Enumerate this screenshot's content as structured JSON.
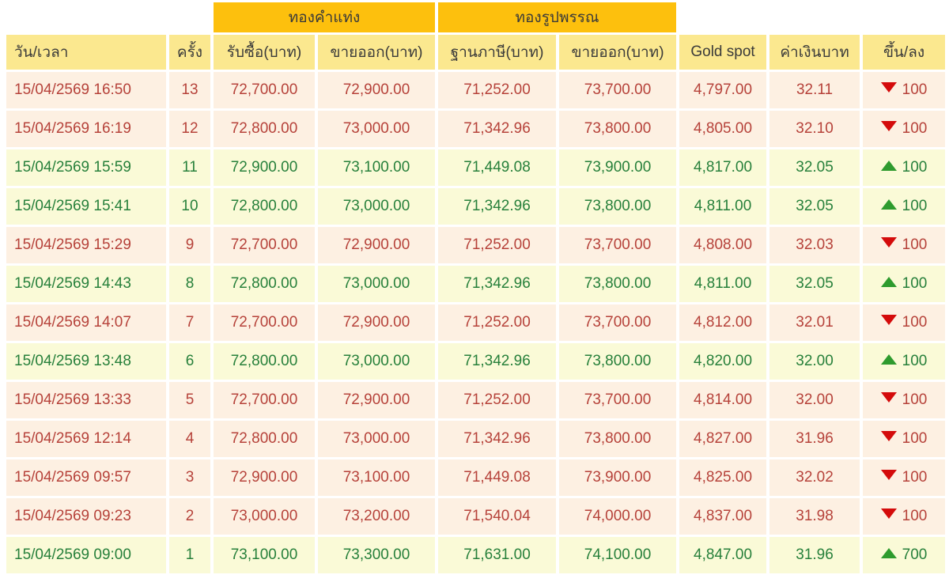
{
  "colors": {
    "accent_orange": "#FDC00D",
    "header_yellow": "#FBE88F",
    "row_down_bg": "#FDF0E2",
    "row_up_bg": "#FAFAD7",
    "down_text": "#B6423A",
    "up_text": "#27803B",
    "down_arrow": "#D40B0B",
    "up_arrow": "#2E9B2E",
    "header_text": "#3A3A3A"
  },
  "table": {
    "group_headers": [
      {
        "label": "ทองคำแท่ง"
      },
      {
        "label": "ทองรูปพรรณ"
      }
    ],
    "columns": [
      "วัน/เวลา",
      "ครั้ง",
      "รับซื้อ(บาท)",
      "ขายออก(บาท)",
      "ฐานภาษี(บาท)",
      "ขายออก(บาท)",
      "Gold spot",
      "ค่าเงินบาท",
      "ขึ้น/ลง"
    ],
    "rows": [
      {
        "datetime": "15/04/2569 16:50",
        "round": "13",
        "bar_buy": "72,700.00",
        "bar_sell": "72,900.00",
        "tax_base": "71,252.00",
        "jewelry_sell": "73,700.00",
        "gold_spot": "4,797.00",
        "baht": "32.11",
        "direction": "down",
        "change": "100"
      },
      {
        "datetime": "15/04/2569 16:19",
        "round": "12",
        "bar_buy": "72,800.00",
        "bar_sell": "73,000.00",
        "tax_base": "71,342.96",
        "jewelry_sell": "73,800.00",
        "gold_spot": "4,805.00",
        "baht": "32.10",
        "direction": "down",
        "change": "100"
      },
      {
        "datetime": "15/04/2569 15:59",
        "round": "11",
        "bar_buy": "72,900.00",
        "bar_sell": "73,100.00",
        "tax_base": "71,449.08",
        "jewelry_sell": "73,900.00",
        "gold_spot": "4,817.00",
        "baht": "32.05",
        "direction": "up",
        "change": "100"
      },
      {
        "datetime": "15/04/2569 15:41",
        "round": "10",
        "bar_buy": "72,800.00",
        "bar_sell": "73,000.00",
        "tax_base": "71,342.96",
        "jewelry_sell": "73,800.00",
        "gold_spot": "4,811.00",
        "baht": "32.05",
        "direction": "up",
        "change": "100"
      },
      {
        "datetime": "15/04/2569 15:29",
        "round": "9",
        "bar_buy": "72,700.00",
        "bar_sell": "72,900.00",
        "tax_base": "71,252.00",
        "jewelry_sell": "73,700.00",
        "gold_spot": "4,808.00",
        "baht": "32.03",
        "direction": "down",
        "change": "100"
      },
      {
        "datetime": "15/04/2569 14:43",
        "round": "8",
        "bar_buy": "72,800.00",
        "bar_sell": "73,000.00",
        "tax_base": "71,342.96",
        "jewelry_sell": "73,800.00",
        "gold_spot": "4,811.00",
        "baht": "32.05",
        "direction": "up",
        "change": "100"
      },
      {
        "datetime": "15/04/2569 14:07",
        "round": "7",
        "bar_buy": "72,700.00",
        "bar_sell": "72,900.00",
        "tax_base": "71,252.00",
        "jewelry_sell": "73,700.00",
        "gold_spot": "4,812.00",
        "baht": "32.01",
        "direction": "down",
        "change": "100"
      },
      {
        "datetime": "15/04/2569 13:48",
        "round": "6",
        "bar_buy": "72,800.00",
        "bar_sell": "73,000.00",
        "tax_base": "71,342.96",
        "jewelry_sell": "73,800.00",
        "gold_spot": "4,820.00",
        "baht": "32.00",
        "direction": "up",
        "change": "100"
      },
      {
        "datetime": "15/04/2569 13:33",
        "round": "5",
        "bar_buy": "72,700.00",
        "bar_sell": "72,900.00",
        "tax_base": "71,252.00",
        "jewelry_sell": "73,700.00",
        "gold_spot": "4,814.00",
        "baht": "32.00",
        "direction": "down",
        "change": "100"
      },
      {
        "datetime": "15/04/2569 12:14",
        "round": "4",
        "bar_buy": "72,800.00",
        "bar_sell": "73,000.00",
        "tax_base": "71,342.96",
        "jewelry_sell": "73,800.00",
        "gold_spot": "4,827.00",
        "baht": "31.96",
        "direction": "down",
        "change": "100"
      },
      {
        "datetime": "15/04/2569 09:57",
        "round": "3",
        "bar_buy": "72,900.00",
        "bar_sell": "73,100.00",
        "tax_base": "71,449.08",
        "jewelry_sell": "73,900.00",
        "gold_spot": "4,825.00",
        "baht": "32.02",
        "direction": "down",
        "change": "100"
      },
      {
        "datetime": "15/04/2569 09:23",
        "round": "2",
        "bar_buy": "73,000.00",
        "bar_sell": "73,200.00",
        "tax_base": "71,540.04",
        "jewelry_sell": "74,000.00",
        "gold_spot": "4,837.00",
        "baht": "31.98",
        "direction": "down",
        "change": "100"
      },
      {
        "datetime": "15/04/2569 09:00",
        "round": "1",
        "bar_buy": "73,100.00",
        "bar_sell": "73,300.00",
        "tax_base": "71,631.00",
        "jewelry_sell": "74,100.00",
        "gold_spot": "4,847.00",
        "baht": "31.96",
        "direction": "up",
        "change": "700"
      }
    ]
  }
}
